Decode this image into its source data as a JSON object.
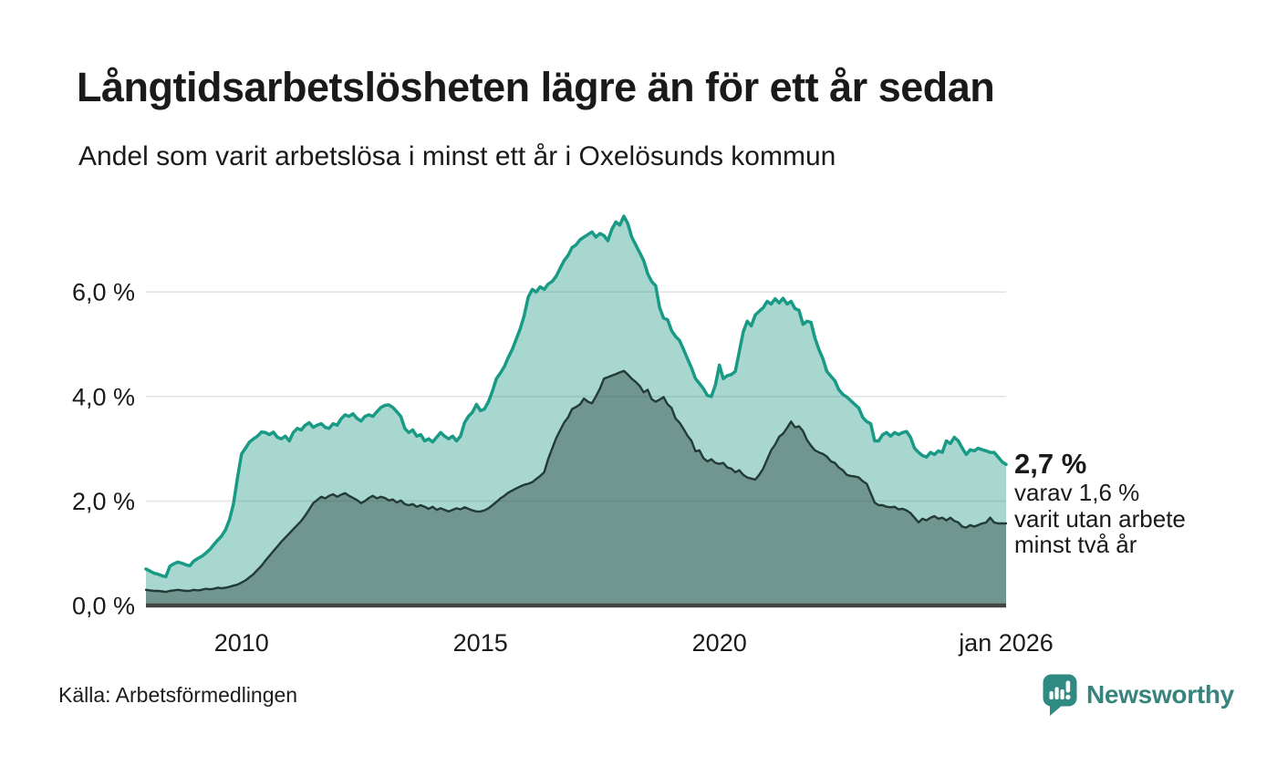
{
  "header": {
    "title": "Långtidsarbetslösheten lägre än för ett år sedan",
    "subtitle": "Andel som varit arbetslösa i minst ett år i Oxelösunds kommun"
  },
  "annotation": {
    "headline": "2,7 %",
    "lines": [
      "varav 1,6 %",
      "varit utan arbete",
      "minst två år"
    ]
  },
  "footer": {
    "source": "Källa: Arbetsförmedlingen",
    "brand": "Newsworthy"
  },
  "colors": {
    "accent_teal": "#189a85",
    "dark_line": "#233b36",
    "light_fill": "#a9d6ce",
    "dark_fill": "#6f9e96",
    "brand_teal": "#2f8b82",
    "grid": "#e4e4e4",
    "baseline": "#444444",
    "text": "#1a1a1a"
  },
  "chart_data": {
    "type": "area",
    "title": "Långtidsarbetslösheten lägre än för ett år sedan",
    "subtitle": "Andel som varit arbetslösa i minst ett år i Oxelösunds kommun",
    "unit": "%",
    "interval": "monthly",
    "x_start": 2008.0,
    "x_end": 2026.0,
    "ylim": [
      0,
      7.8
    ],
    "grid": true,
    "y_ticks": [
      {
        "value": 0,
        "label": "0,0 %"
      },
      {
        "value": 2,
        "label": "2,0 %"
      },
      {
        "value": 4,
        "label": "4,0 %"
      },
      {
        "value": 6,
        "label": "6,0 %"
      }
    ],
    "x_ticks": [
      {
        "year": 2010,
        "label": "2010"
      },
      {
        "year": 2015,
        "label": "2015"
      },
      {
        "year": 2020,
        "label": "2020"
      },
      {
        "year": 2026,
        "label": "jan 2026"
      }
    ],
    "last_values": {
      "min_one_year": 2.7,
      "min_two_years": 1.6
    },
    "series": [
      {
        "name": "Arbetslösa minst ett år",
        "values": [
          0.7,
          0.66,
          0.62,
          0.6,
          0.57,
          0.55,
          0.75,
          0.8,
          0.83,
          0.81,
          0.78,
          0.76,
          0.85,
          0.9,
          0.94,
          1.0,
          1.07,
          1.16,
          1.25,
          1.33,
          1.45,
          1.65,
          1.95,
          2.45,
          2.9,
          3.01,
          3.13,
          3.19,
          3.24,
          3.32,
          3.31,
          3.27,
          3.32,
          3.22,
          3.19,
          3.24,
          3.15,
          3.31,
          3.39,
          3.36,
          3.45,
          3.5,
          3.41,
          3.45,
          3.48,
          3.41,
          3.39,
          3.48,
          3.45,
          3.57,
          3.65,
          3.62,
          3.67,
          3.58,
          3.53,
          3.62,
          3.65,
          3.62,
          3.71,
          3.79,
          3.83,
          3.84,
          3.79,
          3.71,
          3.62,
          3.39,
          3.31,
          3.36,
          3.24,
          3.27,
          3.15,
          3.19,
          3.13,
          3.22,
          3.31,
          3.24,
          3.19,
          3.24,
          3.15,
          3.24,
          3.5,
          3.62,
          3.7,
          3.85,
          3.73,
          3.76,
          3.9,
          4.1,
          4.34,
          4.45,
          4.57,
          4.75,
          4.9,
          5.1,
          5.3,
          5.55,
          5.9,
          6.05,
          6.0,
          6.1,
          6.05,
          6.15,
          6.2,
          6.3,
          6.45,
          6.6,
          6.7,
          6.85,
          6.9,
          7.0,
          7.05,
          7.1,
          7.15,
          7.05,
          7.12,
          7.08,
          6.98,
          7.2,
          7.34,
          7.28,
          7.45,
          7.31,
          7.05,
          6.9,
          6.75,
          6.6,
          6.35,
          6.2,
          6.12,
          5.7,
          5.5,
          5.47,
          5.26,
          5.15,
          5.07,
          4.9,
          4.72,
          4.55,
          4.34,
          4.25,
          4.15,
          4.02,
          4.0,
          4.22,
          4.6,
          4.34,
          4.4,
          4.42,
          4.48,
          4.86,
          5.24,
          5.44,
          5.35,
          5.56,
          5.63,
          5.7,
          5.82,
          5.77,
          5.87,
          5.79,
          5.88,
          5.77,
          5.82,
          5.68,
          5.65,
          5.38,
          5.44,
          5.42,
          5.12,
          4.9,
          4.72,
          4.48,
          4.39,
          4.3,
          4.13,
          4.04,
          3.99,
          3.92,
          3.85,
          3.78,
          3.6,
          3.52,
          3.48,
          3.15,
          3.15,
          3.27,
          3.31,
          3.24,
          3.31,
          3.27,
          3.31,
          3.33,
          3.22,
          3.01,
          2.93,
          2.87,
          2.84,
          2.93,
          2.89,
          2.96,
          2.93,
          3.15,
          3.1,
          3.22,
          3.15,
          3.01,
          2.89,
          2.98,
          2.96,
          3.01,
          2.98,
          2.96,
          2.93,
          2.93,
          2.84,
          2.75,
          2.7
        ]
      },
      {
        "name": "Arbetslösa minst två år",
        "values": [
          0.3,
          0.29,
          0.28,
          0.28,
          0.27,
          0.26,
          0.28,
          0.29,
          0.3,
          0.29,
          0.28,
          0.28,
          0.3,
          0.29,
          0.3,
          0.32,
          0.31,
          0.32,
          0.34,
          0.33,
          0.34,
          0.36,
          0.38,
          0.4,
          0.44,
          0.48,
          0.54,
          0.6,
          0.68,
          0.76,
          0.86,
          0.95,
          1.04,
          1.13,
          1.22,
          1.3,
          1.38,
          1.46,
          1.54,
          1.62,
          1.72,
          1.84,
          1.96,
          2.02,
          2.08,
          2.05,
          2.1,
          2.13,
          2.08,
          2.12,
          2.15,
          2.1,
          2.06,
          2.02,
          1.96,
          2.0,
          2.06,
          2.1,
          2.05,
          2.08,
          2.06,
          2.01,
          2.03,
          1.97,
          2.01,
          1.94,
          1.92,
          1.94,
          1.89,
          1.92,
          1.89,
          1.85,
          1.89,
          1.83,
          1.86,
          1.83,
          1.8,
          1.83,
          1.86,
          1.84,
          1.88,
          1.85,
          1.82,
          1.8,
          1.8,
          1.82,
          1.86,
          1.92,
          1.98,
          2.05,
          2.1,
          2.16,
          2.2,
          2.24,
          2.28,
          2.31,
          2.33,
          2.36,
          2.42,
          2.48,
          2.55,
          2.8,
          3.0,
          3.2,
          3.35,
          3.5,
          3.6,
          3.76,
          3.8,
          3.85,
          3.96,
          3.9,
          3.87,
          4.0,
          4.15,
          4.34,
          4.37,
          4.4,
          4.43,
          4.46,
          4.49,
          4.42,
          4.34,
          4.28,
          4.2,
          4.08,
          4.13,
          3.95,
          3.9,
          3.94,
          3.99,
          3.85,
          3.78,
          3.58,
          3.5,
          3.38,
          3.25,
          3.15,
          2.95,
          2.97,
          2.82,
          2.76,
          2.8,
          2.73,
          2.71,
          2.73,
          2.64,
          2.62,
          2.55,
          2.59,
          2.5,
          2.45,
          2.43,
          2.41,
          2.5,
          2.62,
          2.8,
          2.97,
          3.08,
          3.23,
          3.29,
          3.4,
          3.52,
          3.41,
          3.43,
          3.34,
          3.17,
          3.06,
          2.97,
          2.93,
          2.9,
          2.85,
          2.76,
          2.73,
          2.64,
          2.59,
          2.5,
          2.48,
          2.47,
          2.45,
          2.38,
          2.33,
          2.15,
          1.97,
          1.92,
          1.92,
          1.89,
          1.88,
          1.89,
          1.84,
          1.85,
          1.82,
          1.77,
          1.68,
          1.59,
          1.66,
          1.63,
          1.68,
          1.71,
          1.66,
          1.68,
          1.63,
          1.68,
          1.62,
          1.59,
          1.51,
          1.49,
          1.54,
          1.51,
          1.54,
          1.57,
          1.59,
          1.68,
          1.59,
          1.57,
          1.57,
          1.57
        ]
      }
    ]
  }
}
